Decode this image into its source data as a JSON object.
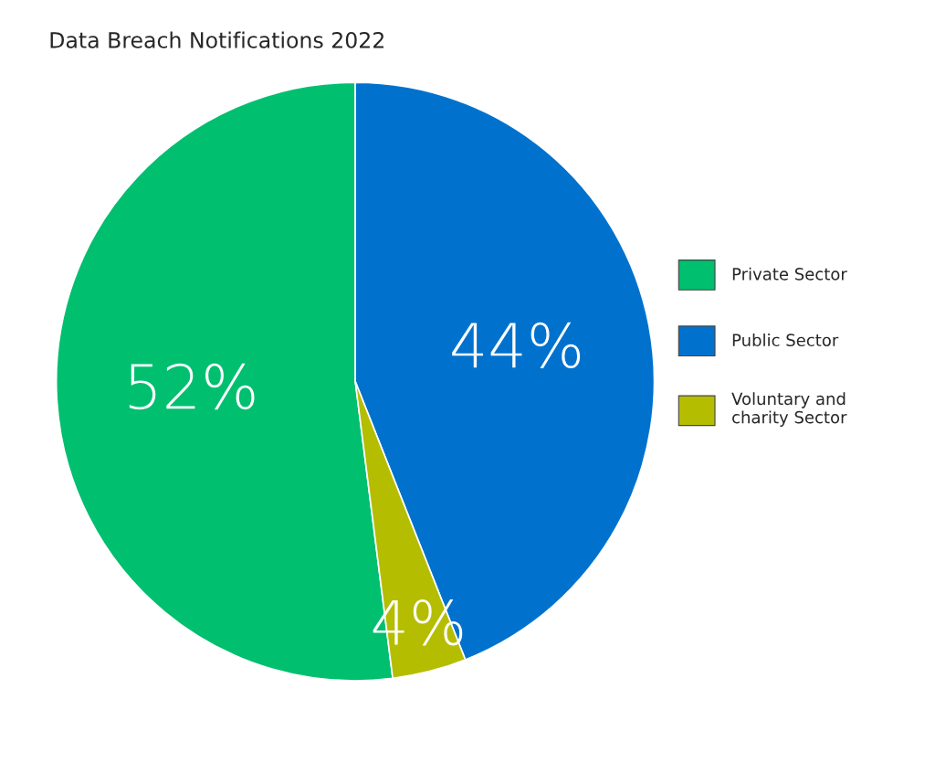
{
  "chart_data": {
    "type": "pie",
    "title": "Data Breach Notifications 2022",
    "categories": [
      "Private Sector",
      "Public Sector",
      "Voluntary and\ncharity Sector"
    ],
    "values": [
      52,
      44,
      4
    ],
    "colors": [
      "#00bf6f",
      "#0072ce",
      "#b5bd00"
    ],
    "value_labels": [
      "52%",
      "44%",
      "4%"
    ],
    "legend": "right"
  }
}
